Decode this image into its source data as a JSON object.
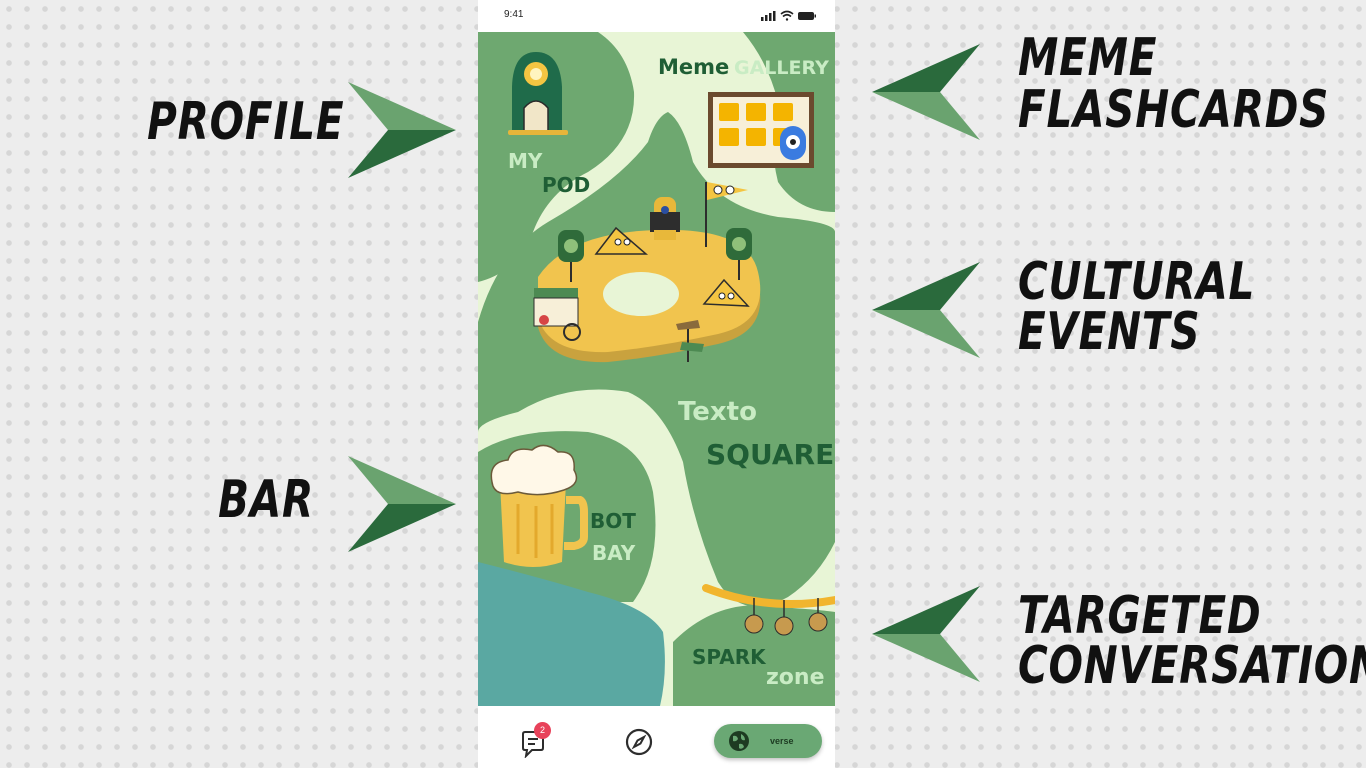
{
  "status_bar": {
    "time": "9:41"
  },
  "annotations": {
    "profile": "PROFILE",
    "bar": "BAR",
    "meme_1": "MEME",
    "meme_2": "FLASHCARDS",
    "cultural_1": "CULTURAL",
    "cultural_2": "EVENTS",
    "targeted_1": "TARGETED",
    "targeted_2": "CONVERSATION"
  },
  "map": {
    "my": "MY",
    "pod": "POD",
    "meme": "Meme",
    "gallery": "GALLERY",
    "texto": "Texto",
    "square": "SQUARE",
    "bot": "BOT",
    "bay": "BAY",
    "spark": "SPARK",
    "zone": "zone"
  },
  "bottom_nav": {
    "chat_badge": "2",
    "verse_label": "verse"
  },
  "colors": {
    "background": "#ededed",
    "map_green": "#6ea870",
    "map_light": "#e8f5d6",
    "dark_green": "#1f5e35",
    "plaza_yellow": "#f1c44e",
    "water": "#5aa8a2",
    "badge_red": "#e8425a"
  },
  "icons": [
    "chat-icon",
    "compass-icon",
    "globe-icon",
    "signal-icon",
    "wifi-icon",
    "battery-icon"
  ]
}
